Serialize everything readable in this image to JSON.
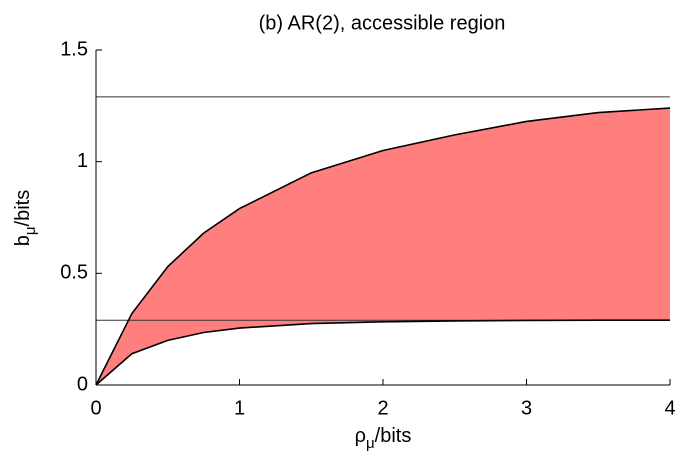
{
  "chart_data": {
    "type": "area-between",
    "title": "(b) AR(2), accessible region",
    "xlabel": {
      "base": "ρ",
      "sub": "μ",
      "rest": "/bits"
    },
    "ylabel": {
      "base": "b",
      "sub": "μ",
      "rest": "/bits"
    },
    "x": [
      0,
      0.25,
      0.5,
      0.75,
      1,
      1.5,
      2,
      2.5,
      3,
      3.5,
      4
    ],
    "series": [
      {
        "color": "#000000",
        "values": [
          0,
          0.32,
          0.53,
          0.68,
          0.79,
          0.95,
          1.05,
          1.12,
          1.18,
          1.22,
          1.24
        ]
      },
      {
        "color": "#000000",
        "values": [
          0,
          0.14,
          0.2,
          0.235,
          0.255,
          0.275,
          0.283,
          0.287,
          0.289,
          0.29,
          0.29
        ]
      }
    ],
    "fill": "#ff7f7f",
    "hlines": [
      1.29,
      0.29
    ],
    "xlim": [
      0,
      4
    ],
    "xticks": [
      0,
      1,
      2,
      3,
      4
    ],
    "ylim": [
      0,
      1.5
    ],
    "yticks": [
      0,
      0.5,
      1,
      1.5
    ]
  }
}
